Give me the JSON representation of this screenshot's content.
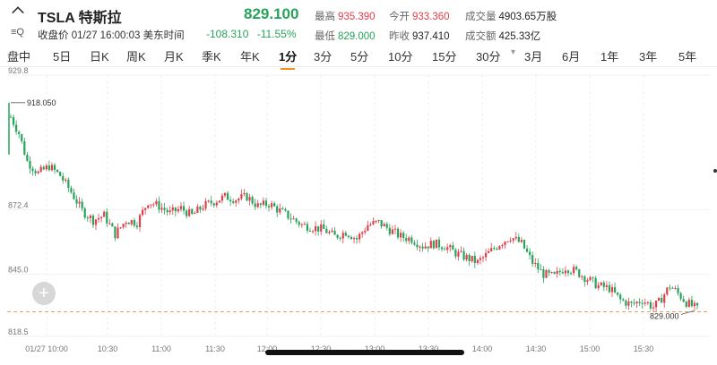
{
  "header": {
    "title": "TSLA 特斯拉",
    "close_label": "收盘价",
    "datetime": "01/27 16:00:03 美东时间",
    "last": "829.100",
    "change": "-108.310",
    "change_pct": "-11.55%",
    "stats": {
      "high_label": "最高",
      "high": "935.390",
      "open_label": "今开",
      "open": "933.360",
      "vol_label": "成交量",
      "vol": "4903.65万股",
      "low_label": "最低",
      "low": "829.000",
      "prevclose_label": "昨收",
      "prevclose": "937.410",
      "amount_label": "成交额",
      "amount": "425.33亿"
    },
    "colors": {
      "up": "#e0404a",
      "down": "#27a35a"
    }
  },
  "tabs": [
    {
      "label": "盘中"
    },
    {
      "label": "5日"
    },
    {
      "label": "日K"
    },
    {
      "label": "周K"
    },
    {
      "label": "月K"
    },
    {
      "label": "季K"
    },
    {
      "label": "年K"
    },
    {
      "label": "1分",
      "active": true
    },
    {
      "label": "3分"
    },
    {
      "label": "5分"
    },
    {
      "label": "10分"
    },
    {
      "label": "15分"
    },
    {
      "label": "30分"
    },
    {
      "label": "3月"
    },
    {
      "label": "6月"
    },
    {
      "label": "1年"
    },
    {
      "label": "3年"
    },
    {
      "label": "5年"
    }
  ],
  "chart_data": {
    "type": "candlestick",
    "x_ticks": [
      "01/27 10:00",
      "10:30",
      "11:00",
      "11:30",
      "12:00",
      "12:30",
      "13:00",
      "13:30",
      "14:00",
      "14:30",
      "15:00",
      "15:30"
    ],
    "y_ticks": [
      "929.8",
      "872.4",
      "845.0",
      "818.5"
    ],
    "ylim": [
      818.5,
      929.8
    ],
    "high_marker": "918.050",
    "low_marker": "829.000",
    "reference_line": 829.0,
    "grid": "vertical dashed at time ticks",
    "price_path": [
      [
        0,
        912
      ],
      [
        3,
        905
      ],
      [
        6,
        893
      ],
      [
        10,
        888
      ],
      [
        14,
        891
      ],
      [
        18,
        887
      ],
      [
        22,
        880
      ],
      [
        26,
        872
      ],
      [
        30,
        868
      ],
      [
        34,
        870
      ],
      [
        38,
        862
      ],
      [
        42,
        868
      ],
      [
        46,
        867
      ],
      [
        50,
        876
      ],
      [
        54,
        874
      ],
      [
        58,
        871
      ],
      [
        62,
        873
      ],
      [
        66,
        870
      ],
      [
        70,
        874
      ],
      [
        74,
        876
      ],
      [
        78,
        878
      ],
      [
        82,
        877
      ],
      [
        86,
        878
      ],
      [
        90,
        874
      ],
      [
        94,
        875
      ],
      [
        98,
        872
      ],
      [
        102,
        869
      ],
      [
        106,
        866
      ],
      [
        110,
        865
      ],
      [
        114,
        864
      ],
      [
        118,
        861
      ],
      [
        122,
        863
      ],
      [
        126,
        860
      ],
      [
        130,
        866
      ],
      [
        134,
        867
      ],
      [
        138,
        864
      ],
      [
        142,
        861
      ],
      [
        146,
        860
      ],
      [
        150,
        857
      ],
      [
        154,
        858
      ],
      [
        158,
        857
      ],
      [
        162,
        854
      ],
      [
        166,
        852
      ],
      [
        170,
        850
      ],
      [
        174,
        854
      ],
      [
        178,
        858
      ],
      [
        182,
        861
      ],
      [
        186,
        858
      ],
      [
        190,
        850
      ],
      [
        194,
        845
      ],
      [
        198,
        844
      ],
      [
        202,
        848
      ],
      [
        206,
        846
      ],
      [
        210,
        843
      ],
      [
        214,
        840
      ],
      [
        218,
        839
      ],
      [
        222,
        834
      ],
      [
        226,
        832
      ],
      [
        230,
        834
      ],
      [
        234,
        831
      ],
      [
        236,
        833
      ],
      [
        240,
        840
      ],
      [
        242,
        838
      ],
      [
        246,
        833
      ],
      [
        250,
        830
      ]
    ],
    "up_color": "#e0404a",
    "down_color": "#27a35a"
  }
}
